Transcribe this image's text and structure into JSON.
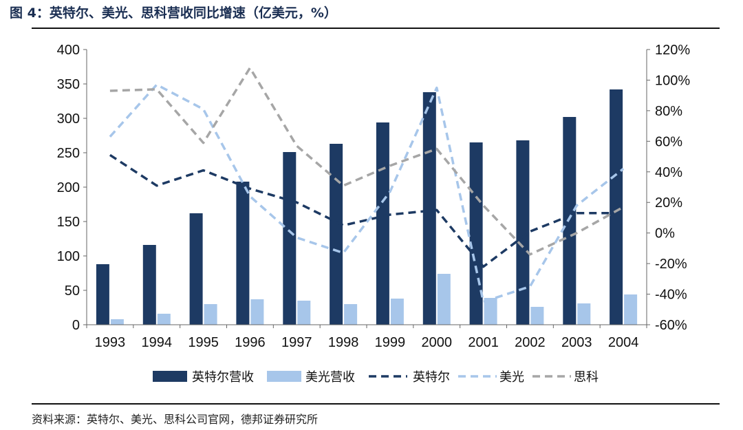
{
  "header": {
    "title": "图 4：英特尔、美光、思科营收同比增速（亿美元，%）"
  },
  "footer": {
    "source": "资料来源：英特尔、美光、思科公司官网，德邦证券研究所"
  },
  "colors": {
    "intel_bar": "#1d3a63",
    "micron_bar": "#a7c6ea",
    "intel_line": "#1d3a63",
    "micron_line": "#a7c6ea",
    "cisco_line": "#a6a6a6"
  },
  "chart_data": {
    "type": "bar",
    "categories": [
      "1993",
      "1994",
      "1995",
      "1996",
      "1997",
      "1998",
      "1999",
      "2000",
      "2001",
      "2002",
      "2003",
      "2004"
    ],
    "left_axis": {
      "ylim": [
        0,
        400
      ],
      "ticks": [
        "0",
        "50",
        "100",
        "150",
        "200",
        "250",
        "300",
        "350",
        "400"
      ]
    },
    "right_axis": {
      "ylim": [
        -60,
        120
      ],
      "ticks": [
        "-60%",
        "-40%",
        "-20%",
        "0%",
        "20%",
        "40%",
        "60%",
        "80%",
        "100%",
        "120%"
      ]
    },
    "series": [
      {
        "name": "英特尔营收",
        "kind": "bar",
        "axis": "left",
        "color": "#1d3a63",
        "values": [
          88,
          116,
          162,
          208,
          251,
          263,
          294,
          338,
          265,
          268,
          302,
          342
        ]
      },
      {
        "name": "美光营收",
        "kind": "bar",
        "axis": "left",
        "color": "#a7c6ea",
        "values": [
          8,
          16,
          30,
          37,
          35,
          30,
          38,
          74,
          39,
          26,
          31,
          44
        ]
      },
      {
        "name": "英特尔",
        "kind": "line",
        "axis": "right",
        "color": "#1d3a63",
        "values": [
          51,
          31,
          41,
          29,
          20,
          5,
          12,
          15,
          -22,
          1,
          13,
          13
        ]
      },
      {
        "name": "美光",
        "kind": "line",
        "axis": "right",
        "color": "#a7c6ea",
        "values": [
          63,
          97,
          81,
          24,
          -3,
          -13,
          27,
          95,
          -45,
          -35,
          18,
          42
        ]
      },
      {
        "name": "思科",
        "kind": "line",
        "axis": "right",
        "color": "#a6a6a6",
        "values": [
          93,
          94,
          59,
          108,
          57,
          31,
          44,
          55,
          18,
          -14,
          0,
          17
        ]
      }
    ],
    "legend_position": "bottom",
    "grid": false
  }
}
